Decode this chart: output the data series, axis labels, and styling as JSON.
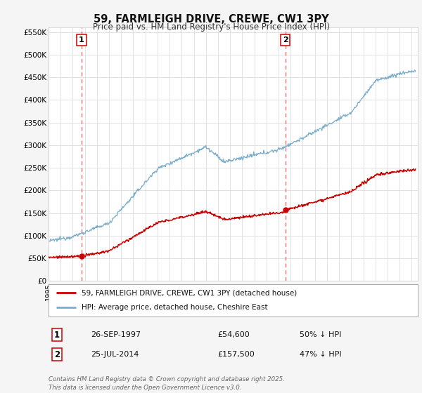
{
  "title": "59, FARMLEIGH DRIVE, CREWE, CW1 3PY",
  "subtitle": "Price paid vs. HM Land Registry's House Price Index (HPI)",
  "background_color": "#f5f5f5",
  "plot_bg_color": "#ffffff",
  "grid_color": "#dddddd",
  "ylim": [
    0,
    560000
  ],
  "yticks": [
    0,
    50000,
    100000,
    150000,
    200000,
    250000,
    300000,
    350000,
    400000,
    450000,
    500000,
    550000
  ],
  "ytick_labels": [
    "£0",
    "£50K",
    "£100K",
    "£150K",
    "£200K",
    "£250K",
    "£300K",
    "£350K",
    "£400K",
    "£450K",
    "£500K",
    "£550K"
  ],
  "sale1_date": 1997.73,
  "sale1_price": 54600,
  "sale1_label": "1",
  "sale2_date": 2014.56,
  "sale2_price": 157500,
  "sale2_label": "2",
  "red_line_color": "#cc0000",
  "blue_line_color": "#7aadcc",
  "marker_color": "#cc0000",
  "dashed_line_color": "#e87070",
  "legend_label_red": "59, FARMLEIGH DRIVE, CREWE, CW1 3PY (detached house)",
  "legend_label_blue": "HPI: Average price, detached house, Cheshire East",
  "footnote": "Contains HM Land Registry data © Crown copyright and database right 2025.\nThis data is licensed under the Open Government Licence v3.0.",
  "table_row1": [
    "1",
    "26-SEP-1997",
    "£54,600",
    "50% ↓ HPI"
  ],
  "table_row2": [
    "2",
    "25-JUL-2014",
    "£157,500",
    "47% ↓ HPI"
  ]
}
